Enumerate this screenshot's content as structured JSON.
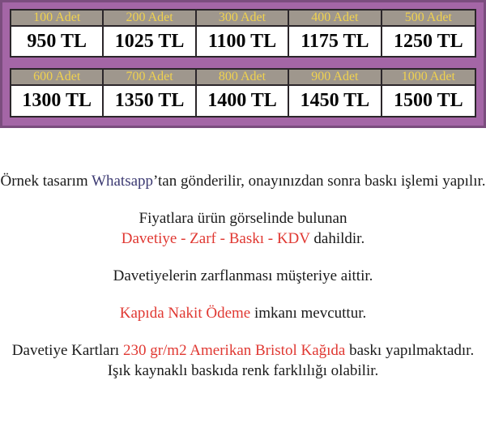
{
  "banner": {
    "background": "#a466a6",
    "edge_color": "#7b4d7e",
    "header_bg": "#9f978d",
    "header_text_color": "#f0d24f",
    "border_color": "#2b262a",
    "tables": [
      {
        "headers": [
          "100 Adet",
          "200 Adet",
          "300 Adet",
          "400 Adet",
          "500 Adet"
        ],
        "prices": [
          "950 TL",
          "1025 TL",
          "1100 TL",
          "1175 TL",
          "1250 TL"
        ]
      },
      {
        "headers": [
          "600 Adet",
          "700 Adet",
          "800 Adet",
          "900 Adet",
          "1000 Adet"
        ],
        "prices": [
          "1300 TL",
          "1350 TL",
          "1400 TL",
          "1450 TL",
          "1500 TL"
        ]
      }
    ]
  },
  "notes": {
    "line1_pre": "Örnek tasarım ",
    "line1_brand": "Whatsapp",
    "line1_post": "’tan gönderilir, onayınızdan sonra baskı işlemi yapılır.",
    "line2": "Fiyatlara ürün görselinde bulunan",
    "line3_red": "Davetiye - Zarf - Baskı - KDV",
    "line3_post": " dahildir.",
    "line4": "Davetiyelerin zarflanması müşteriye aittir.",
    "line5_red": "Kapıda Nakit Ödeme",
    "line5_post": " imkanı mevcuttur.",
    "line6_pre": "Davetiye Kartları ",
    "line6_red": "230 gr/m2 Amerikan Bristol Kağıda",
    "line6_post": " baskı yapılmaktadır.",
    "line7": "Işık kaynaklı baskıda renk farklılığı olabilir."
  },
  "colors": {
    "highlight_red": "#e03832",
    "brand_blue": "#3c3a72"
  }
}
